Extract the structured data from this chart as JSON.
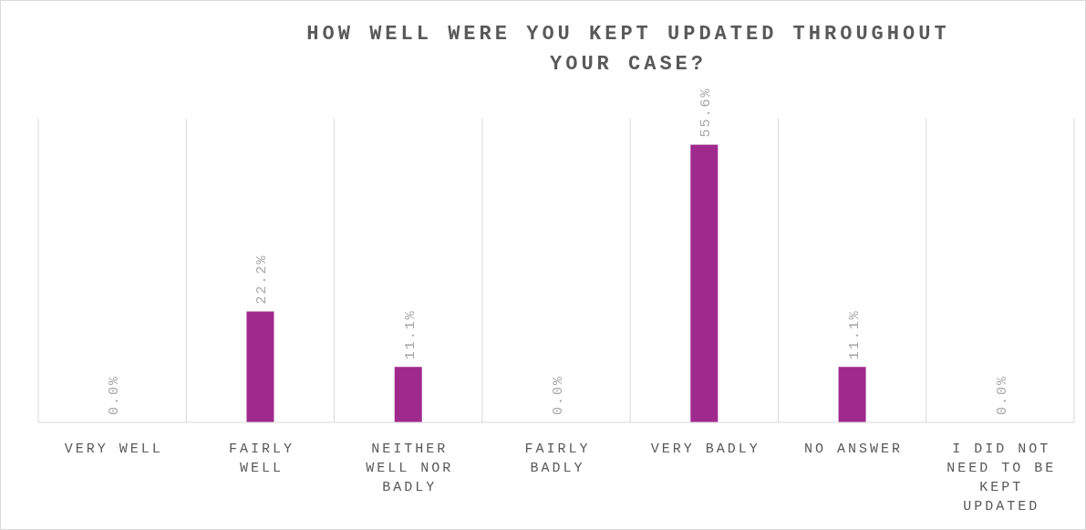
{
  "chart_data": {
    "type": "bar",
    "title": "HOW WELL WERE YOU KEPT UPDATED THROUGHOUT YOUR CASE?",
    "categories": [
      "VERY WELL",
      "FAIRLY WELL",
      "NEITHER WELL NOR BADLY",
      "FAIRLY BADLY",
      "VERY BADLY",
      "NO ANSWER",
      "I DID NOT NEED TO BE KEPT UPDATED"
    ],
    "values": [
      0.0,
      22.2,
      11.1,
      0.0,
      55.6,
      11.1,
      0.0
    ],
    "value_labels": [
      "0.0%",
      "22.2%",
      "11.1%",
      "0.0%",
      "55.6%",
      "11.1%",
      "0.0%"
    ],
    "color": "#a0298e",
    "grid": "x"
  }
}
